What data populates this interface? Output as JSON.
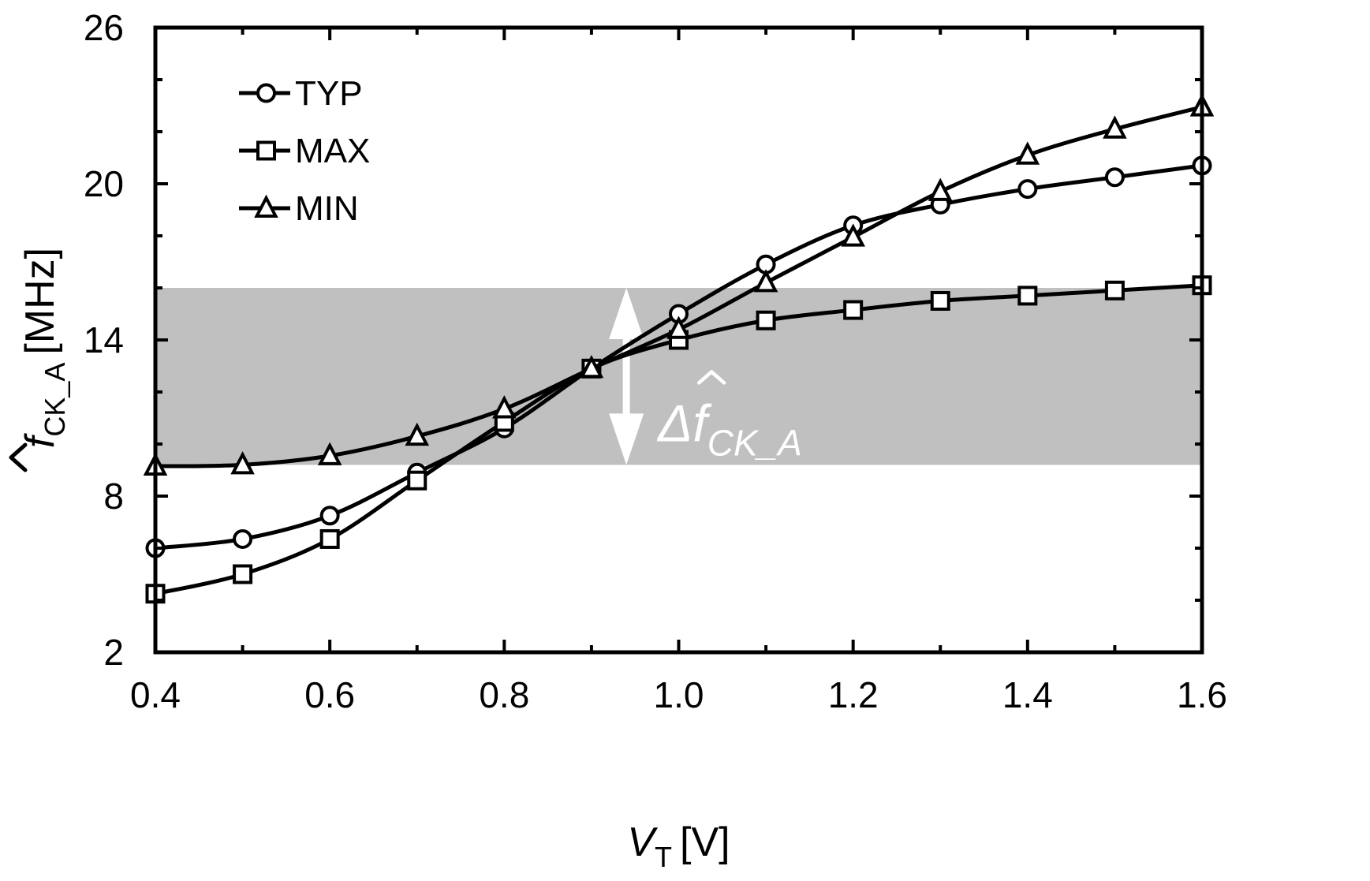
{
  "chart_data": {
    "type": "line",
    "title": "",
    "xlabel": {
      "main": "V",
      "sub": "T",
      "unit": "[V]"
    },
    "ylabel": {
      "main": "f",
      "sub": "CK_A",
      "unit": "[MHz]"
    },
    "xlim": [
      0.4,
      1.6
    ],
    "ylim": [
      2,
      26
    ],
    "x_ticks": [
      0.4,
      0.6,
      0.8,
      1.0,
      1.2,
      1.4,
      1.6
    ],
    "x_tick_labels": [
      "0.4",
      "0.6",
      "0.8",
      "1.0",
      "1.2",
      "1.4",
      "1.6"
    ],
    "y_ticks": [
      2,
      8,
      14,
      20,
      26
    ],
    "y_tick_labels": [
      "2",
      "8",
      "14",
      "20",
      "26"
    ],
    "x_minor_step": 0.1,
    "y_minor_step": 2,
    "grid": false,
    "legend_position": "top-left",
    "x": [
      0.4,
      0.5,
      0.6,
      0.7,
      0.8,
      0.9,
      1.0,
      1.1,
      1.2,
      1.3,
      1.4,
      1.5,
      1.6
    ],
    "series": [
      {
        "name": "TYP",
        "marker": "circle",
        "values": [
          6.0,
          6.35,
          7.25,
          8.9,
          10.6,
          12.9,
          15.0,
          16.9,
          18.4,
          19.2,
          19.8,
          20.25,
          20.7
        ]
      },
      {
        "name": "MAX",
        "marker": "square",
        "values": [
          4.25,
          5.0,
          6.35,
          8.6,
          10.85,
          12.9,
          14.0,
          14.75,
          15.15,
          15.5,
          15.7,
          15.9,
          16.1
        ]
      },
      {
        "name": "MIN",
        "marker": "triangle",
        "values": [
          9.15,
          9.2,
          9.55,
          10.3,
          11.35,
          12.9,
          14.4,
          16.2,
          17.95,
          19.7,
          21.1,
          22.1,
          22.95
        ]
      }
    ],
    "band": {
      "y_range": [
        9.2,
        16.0
      ],
      "color": "#c0c0c0"
    },
    "annotation": {
      "text": "Δf",
      "sub": "CK_A",
      "x": 0.94,
      "y_range": [
        9.2,
        16.0
      ],
      "color": "#ffffff"
    },
    "colors": {
      "line": "#000000",
      "marker_fill": "#ffffff",
      "band": "#c0c0c0"
    }
  }
}
